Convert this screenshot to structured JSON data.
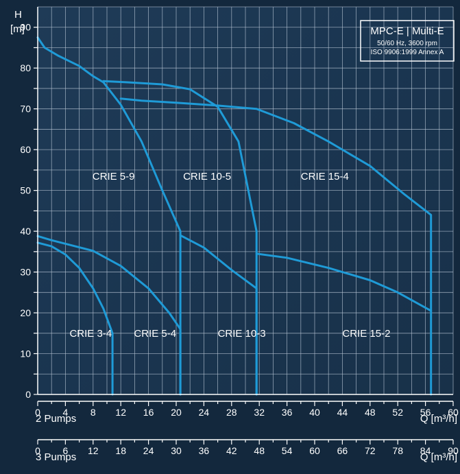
{
  "colors": {
    "background": "#13283d",
    "plot_background": "#1d3852",
    "grid": "#b9c7d6",
    "curve": "#1f9bd7",
    "text": "#ffffff"
  },
  "info_box": {
    "title": "MPC-E | Multi-E",
    "line1": "50/60 Hz, 3600 rpm",
    "line2": "ISO 9906:1999 Annex A"
  },
  "chart_data": {
    "type": "line",
    "title": "",
    "ylabel_line1": "H",
    "ylabel_line2": "[m]",
    "xlabel": "Q [m³/h]",
    "ylim": [
      0,
      95
    ],
    "xlim": [
      0,
      60
    ],
    "yticks": [
      0,
      10,
      20,
      30,
      40,
      50,
      60,
      70,
      80,
      90
    ],
    "grid": true,
    "x_axes": [
      {
        "name": "2 Pumps",
        "label": "Q [m³/h]",
        "range": [
          0,
          60
        ],
        "ticks": [
          0,
          4,
          8,
          12,
          16,
          20,
          24,
          28,
          32,
          36,
          40,
          44,
          48,
          52,
          56,
          60
        ]
      },
      {
        "name": "3 Pumps",
        "label": "Q [m³/h]",
        "range": [
          0,
          90
        ],
        "ticks": [
          0,
          6,
          12,
          18,
          24,
          30,
          36,
          42,
          48,
          54,
          60,
          66,
          72,
          78,
          84,
          90
        ]
      }
    ],
    "series": [
      {
        "name": "CRIE 3-4",
        "x": [
          0,
          2,
          4,
          6,
          8,
          9.5,
          10.8,
          10.8
        ],
        "y": [
          37.2,
          36.3,
          34.3,
          31,
          26,
          21,
          15,
          0
        ],
        "label_pos": [
          4.6,
          15
        ]
      },
      {
        "name": "CRIE 5-4",
        "x": [
          0,
          2,
          5,
          8,
          12,
          16,
          19,
          20.6,
          20.6
        ],
        "y": [
          38.8,
          37.8,
          36.5,
          35.2,
          31.5,
          26,
          20,
          16,
          0
        ],
        "label_pos": [
          13.9,
          15
        ]
      },
      {
        "name": "CRIE 5-9",
        "x": [
          0,
          1,
          3,
          6,
          8,
          9.5,
          12,
          15,
          18,
          20.6,
          20.6
        ],
        "y": [
          87.5,
          85,
          83,
          80.5,
          78,
          76.5,
          71,
          62,
          50,
          40,
          0
        ],
        "label_pos": [
          7.9,
          53.5
        ]
      },
      {
        "name": "CRIE 10-5",
        "x": [
          9.5,
          13,
          18,
          22,
          26,
          29,
          31.6,
          31.6
        ],
        "y": [
          76.8,
          76.5,
          76,
          74.8,
          70.5,
          62,
          40,
          0
        ],
        "label_pos": [
          21,
          53.5
        ]
      },
      {
        "name": "CRIE 10-3",
        "x": [
          20.6,
          24,
          28,
          31.6,
          31.6
        ],
        "y": [
          39,
          36,
          30.5,
          26,
          0
        ],
        "label_pos": [
          26,
          15
        ]
      },
      {
        "name": "CRIE 15-4",
        "x": [
          12,
          15,
          20,
          26,
          31.6,
          37,
          42,
          48,
          53,
          56.8,
          56.8
        ],
        "y": [
          72.5,
          72,
          71.5,
          70.8,
          70,
          66.5,
          62,
          56,
          49,
          44,
          0
        ],
        "label_pos": [
          38,
          53.5
        ]
      },
      {
        "name": "CRIE 15-2",
        "x": [
          31.6,
          36,
          42,
          48,
          52,
          56.8
        ],
        "y": [
          34.5,
          33.5,
          31,
          28,
          25,
          20.5
        ],
        "label_pos": [
          44,
          15
        ]
      }
    ]
  }
}
